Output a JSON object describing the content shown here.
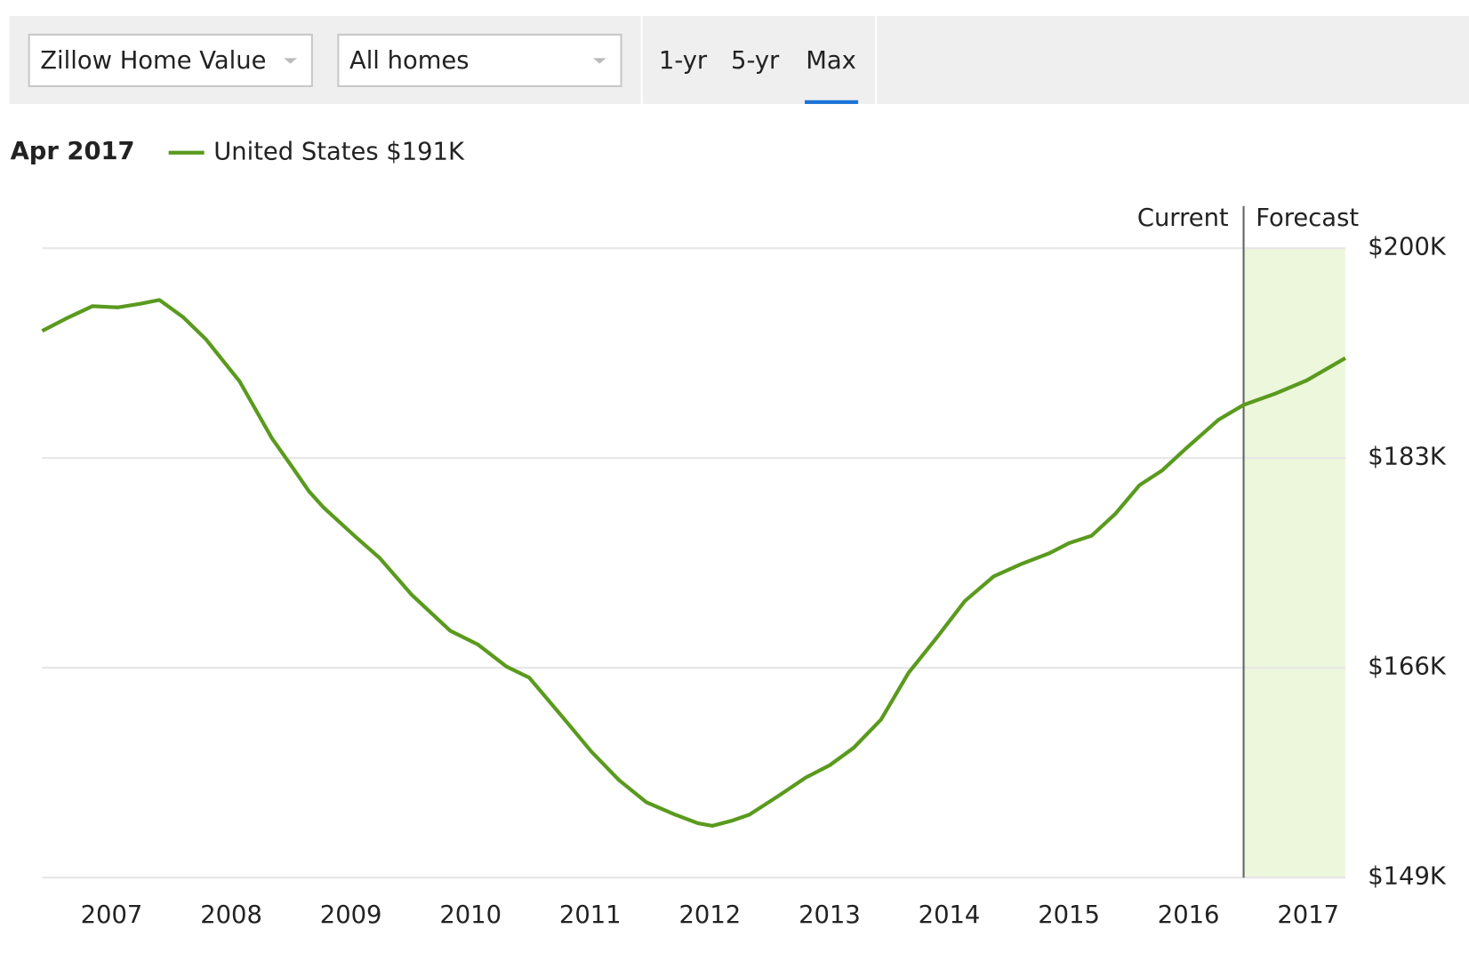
{
  "controls": {
    "metric": "Zillow Home Value",
    "home_type": "All homes",
    "ranges": [
      "1-yr",
      "5-yr",
      "Max"
    ],
    "active_range": 2
  },
  "chart_data": {
    "type": "line",
    "legend_date": "Apr 2017",
    "legend_value": "$191K",
    "current_label": "Current",
    "forecast_label": "Forecast",
    "forecast_start": 2016.46,
    "forecast_color": "#edf7dc",
    "x": [
      2006.42,
      2006.62,
      2006.84,
      2007.05,
      2007.24,
      2007.4,
      2007.6,
      2007.79,
      2008.07,
      2008.34,
      2008.5,
      2008.65,
      2008.77,
      2009.04,
      2009.24,
      2009.51,
      2009.83,
      2010.06,
      2010.3,
      2010.49,
      2010.77,
      2011.01,
      2011.24,
      2011.47,
      2011.71,
      2011.9,
      2012.02,
      2012.18,
      2012.33,
      2012.57,
      2012.8,
      2013.0,
      2013.2,
      2013.43,
      2013.66,
      2013.9,
      2014.13,
      2014.37,
      2014.6,
      2014.84,
      2015.0,
      2015.19,
      2015.39,
      2015.59,
      2015.78,
      2015.97,
      2016.25,
      2016.46,
      2016.72,
      2016.99,
      2017.31
    ],
    "series": [
      {
        "name": "United States",
        "color": "#5a9a1e",
        "values": [
          193.3,
          194.3,
          195.3,
          195.2,
          195.5,
          195.8,
          194.4,
          192.6,
          189.2,
          184.6,
          182.4,
          180.3,
          179.0,
          176.6,
          174.9,
          171.9,
          169.0,
          167.9,
          166.1,
          165.2,
          162.0,
          159.2,
          156.9,
          155.1,
          154.1,
          153.4,
          153.2,
          153.6,
          154.1,
          155.6,
          157.1,
          158.1,
          159.5,
          161.8,
          165.6,
          168.5,
          171.4,
          173.4,
          174.4,
          175.3,
          176.1,
          176.7,
          178.5,
          180.8,
          182.0,
          183.7,
          186.1,
          187.3,
          188.2,
          189.3,
          191.1
        ]
      }
    ],
    "xlim": [
      2006.42,
      2017.31
    ],
    "xticks": [
      2007,
      2008,
      2009,
      2010,
      2011,
      2012,
      2013,
      2014,
      2015,
      2016,
      2017
    ],
    "ylim": [
      149,
      200
    ],
    "yticks": [
      {
        "value": 149,
        "label": "$149K"
      },
      {
        "value": 166,
        "label": "$166K"
      },
      {
        "value": 183,
        "label": "$183K"
      },
      {
        "value": 200,
        "label": "$200K"
      }
    ],
    "grid": true
  }
}
